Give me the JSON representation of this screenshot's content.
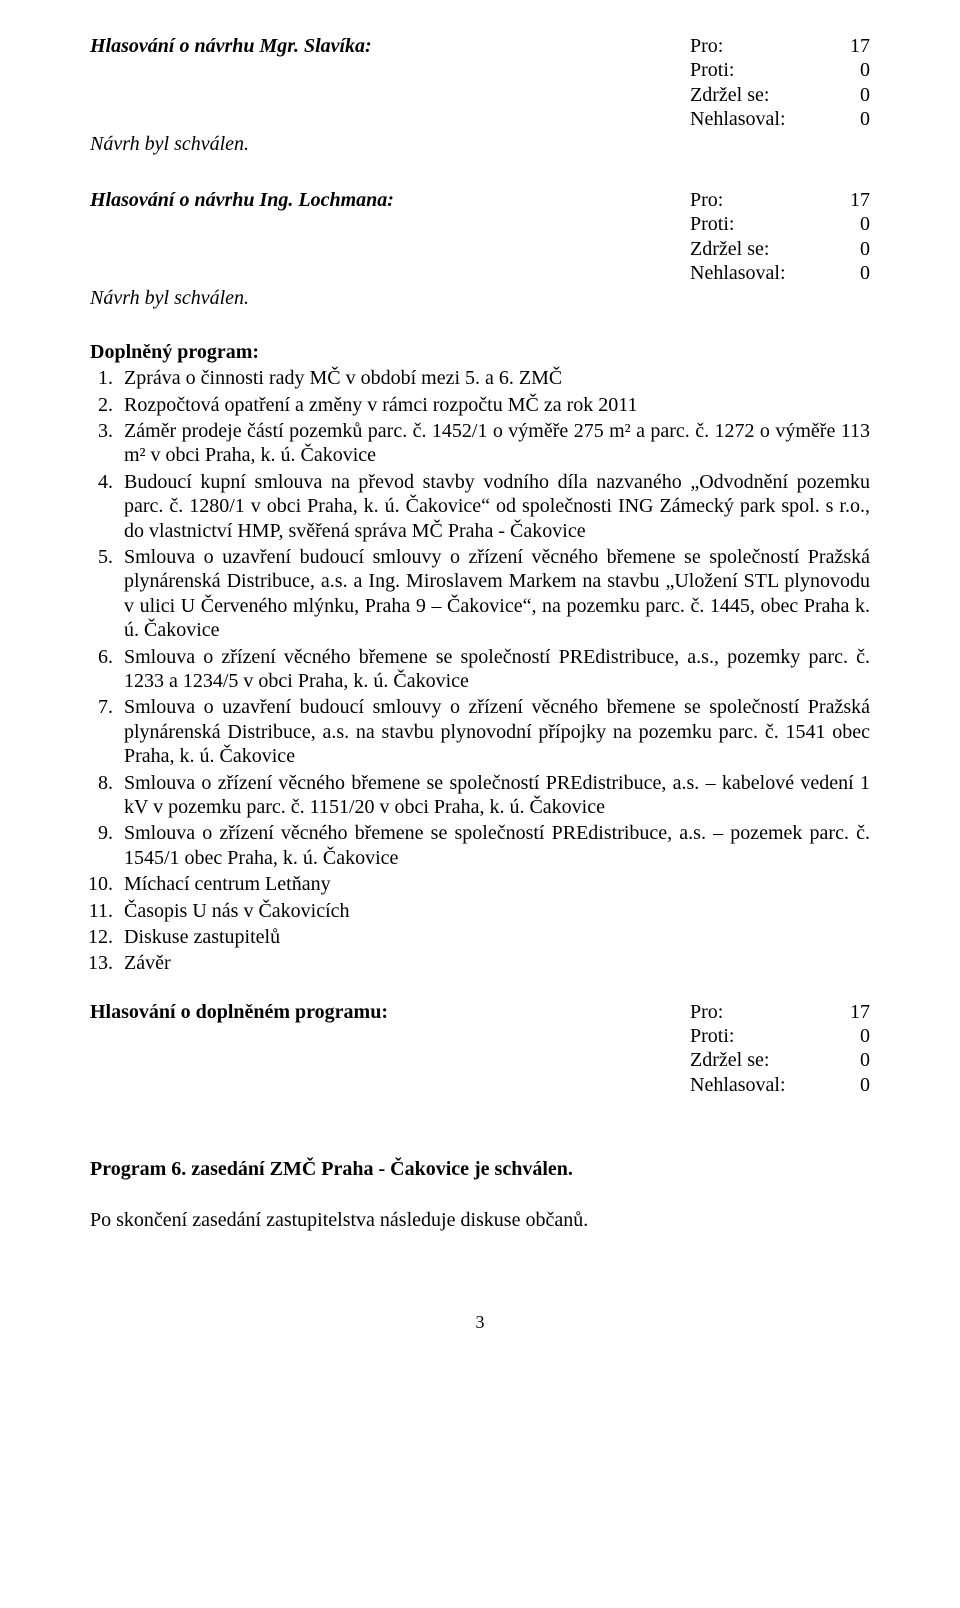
{
  "vote1": {
    "heading_prefix": "Hlasování  o návrhu Mgr. Slavíka:",
    "rows": [
      {
        "key": "Pro:",
        "val": "17"
      },
      {
        "key": "Proti:",
        "val": "0"
      },
      {
        "key": "Zdržel se:",
        "val": "0"
      },
      {
        "key": "Nehlasoval:",
        "val": "0"
      }
    ],
    "accepted": "Návrh byl schválen."
  },
  "vote2": {
    "heading_prefix": "Hlasování  o návrhu Ing. Lochmana:",
    "rows": [
      {
        "key": "Pro:",
        "val": "17"
      },
      {
        "key": "Proti:",
        "val": "0"
      },
      {
        "key": "Zdržel se:",
        "val": "0"
      },
      {
        "key": "Nehlasoval:",
        "val": "0"
      }
    ],
    "accepted": "Návrh byl schválen."
  },
  "program_title": "Doplněný program:",
  "program_items": [
    "Zpráva o činnosti rady MČ v období mezi 5. a 6.  ZMČ",
    "Rozpočtová opatření a změny v rámci rozpočtu MČ za rok 2011",
    "Záměr prodeje částí pozemků parc. č. 1452/1 o výměře 275 m² a parc. č. 1272 o výměře 113 m² v obci Praha, k. ú. Čakovice",
    "Budoucí kupní smlouva na převod stavby vodního díla nazvaného „Odvodnění pozemku parc. č. 1280/1 v obci Praha, k. ú. Čakovice“ od společnosti ING Zámecký park spol. s r.o., do vlastnictví HMP, svěřená správa MČ Praha - Čakovice",
    "Smlouva o uzavření budoucí smlouvy o zřízení věcného břemene se společností Pražská plynárenská Distribuce, a.s. a Ing. Miroslavem Markem na stavbu „Uložení STL plynovodu v ulici U Červeného mlýnku, Praha 9 – Čakovice“, na pozemku parc. č. 1445, obec Praha k. ú. Čakovice",
    "Smlouva o zřízení věcného břemene se společností PREdistribuce, a.s.,  pozemky parc. č. 1233 a 1234/5 v obci Praha, k. ú. Čakovice",
    "Smlouva o uzavření budoucí smlouvy o zřízení věcného břemene se společností Pražská plynárenská Distribuce, a.s. na stavbu plynovodní přípojky na pozemku parc. č. 1541 obec Praha, k. ú. Čakovice",
    "Smlouva o zřízení věcného břemene se společností PREdistribuce, a.s. – kabelové vedení 1 kV v pozemku parc. č. 1151/20 v obci Praha, k. ú. Čakovice",
    "Smlouva o zřízení věcného břemene se společností PREdistribuce, a.s. – pozemek parc. č. 1545/1 obec Praha, k. ú. Čakovice",
    "Míchací centrum Letňany",
    "Časopis U nás v Čakovicích",
    "Diskuse zastupitelů",
    "Závěr"
  ],
  "vote_program": {
    "heading_prefix": "Hlasování o doplněném programu:",
    "rows": [
      {
        "key": "Pro:",
        "val": "17"
      },
      {
        "key": "Proti:",
        "val": "0"
      },
      {
        "key": "Zdržel se:",
        "val": "0"
      },
      {
        "key": "Nehlasoval:",
        "val": "0"
      }
    ]
  },
  "closing": "Program 6. zasedání ZMČ Praha  - Čakovice je schválen.",
  "after_closing": "Po skončení zasedání zastupitelstva následuje diskuse občanů.",
  "page_number": "3"
}
